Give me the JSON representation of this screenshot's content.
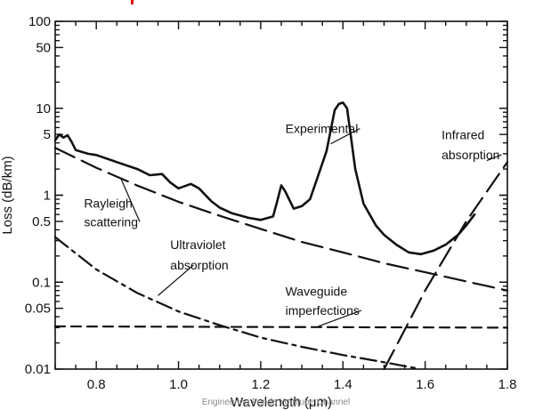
{
  "chart_data": {
    "type": "line",
    "title": "",
    "xlabel": "Wavelength (μm)",
    "ylabel": "Loss (dB/km)",
    "xlim": [
      0.7,
      1.8
    ],
    "ylim": [
      0.01,
      100
    ],
    "yscale": "log",
    "x_ticks": [
      0.8,
      1.0,
      1.2,
      1.4,
      1.6,
      1.8
    ],
    "x_tick_labels": [
      "0.8",
      "1.0",
      "1.2",
      "1.4",
      "1.6",
      "1.8"
    ],
    "y_ticks": [
      0.01,
      0.05,
      0.1,
      0.5,
      1,
      5,
      10,
      50,
      100
    ],
    "y_tick_labels": [
      "0.01",
      "0.05",
      "0.1",
      "0.5",
      "1",
      "5",
      "10",
      "50",
      "100"
    ],
    "grid": false,
    "series": [
      {
        "name": "Experimental",
        "style": "solid",
        "points": [
          [
            0.7,
            4.3
          ],
          [
            0.71,
            5.0
          ],
          [
            0.72,
            4.6
          ],
          [
            0.73,
            4.9
          ],
          [
            0.74,
            4.1
          ],
          [
            0.75,
            3.3
          ],
          [
            0.78,
            3.0
          ],
          [
            0.8,
            2.9
          ],
          [
            0.85,
            2.4
          ],
          [
            0.9,
            2.0
          ],
          [
            0.93,
            1.7
          ],
          [
            0.96,
            1.75
          ],
          [
            0.98,
            1.4
          ],
          [
            1.0,
            1.2
          ],
          [
            1.03,
            1.35
          ],
          [
            1.05,
            1.2
          ],
          [
            1.08,
            0.85
          ],
          [
            1.1,
            0.72
          ],
          [
            1.13,
            0.62
          ],
          [
            1.17,
            0.55
          ],
          [
            1.2,
            0.52
          ],
          [
            1.23,
            0.57
          ],
          [
            1.24,
            0.85
          ],
          [
            1.25,
            1.3
          ],
          [
            1.26,
            1.1
          ],
          [
            1.28,
            0.7
          ],
          [
            1.3,
            0.75
          ],
          [
            1.32,
            0.9
          ],
          [
            1.34,
            1.7
          ],
          [
            1.36,
            3.2
          ],
          [
            1.38,
            9.5
          ],
          [
            1.39,
            11.2
          ],
          [
            1.4,
            11.6
          ],
          [
            1.41,
            10
          ],
          [
            1.42,
            4.5
          ],
          [
            1.43,
            2.0
          ],
          [
            1.45,
            0.8
          ],
          [
            1.48,
            0.45
          ],
          [
            1.5,
            0.35
          ],
          [
            1.53,
            0.27
          ],
          [
            1.56,
            0.22
          ],
          [
            1.59,
            0.21
          ],
          [
            1.62,
            0.23
          ],
          [
            1.65,
            0.27
          ],
          [
            1.68,
            0.35
          ],
          [
            1.7,
            0.45
          ],
          [
            1.72,
            0.6
          ]
        ]
      },
      {
        "name": "Rayleigh scattering",
        "style": "long-dash",
        "points": [
          [
            0.7,
            3.5
          ],
          [
            0.8,
            2.07
          ],
          [
            0.9,
            1.29
          ],
          [
            1.0,
            0.84
          ],
          [
            1.1,
            0.58
          ],
          [
            1.2,
            0.41
          ],
          [
            1.3,
            0.29
          ],
          [
            1.4,
            0.22
          ],
          [
            1.5,
            0.165
          ],
          [
            1.6,
            0.13
          ],
          [
            1.7,
            0.102
          ],
          [
            1.8,
            0.08
          ]
        ]
      },
      {
        "name": "Ultraviolet absorption",
        "style": "dash-dot",
        "points": [
          [
            0.7,
            0.33
          ],
          [
            0.8,
            0.14
          ],
          [
            0.9,
            0.075
          ],
          [
            1.0,
            0.046
          ],
          [
            1.1,
            0.032
          ],
          [
            1.2,
            0.023
          ],
          [
            1.3,
            0.018
          ],
          [
            1.4,
            0.0145
          ],
          [
            1.5,
            0.012
          ],
          [
            1.58,
            0.0102
          ]
        ]
      },
      {
        "name": "Waveguide imperfections",
        "style": "short-dash",
        "points": [
          [
            0.7,
            0.031
          ],
          [
            1.8,
            0.03
          ]
        ]
      },
      {
        "name": "Infrared absorption",
        "style": "long-dash",
        "points": [
          [
            1.5,
            0.01
          ],
          [
            1.55,
            0.028
          ],
          [
            1.6,
            0.08
          ],
          [
            1.65,
            0.2
          ],
          [
            1.7,
            0.5
          ],
          [
            1.75,
            1.1
          ],
          [
            1.8,
            2.4
          ]
        ]
      }
    ],
    "annotations": [
      {
        "text": "Experimental",
        "x": 1.26,
        "y": 5.2,
        "target": [
          1.37,
          3.9
        ]
      },
      {
        "text": "Infrared",
        "x": 1.64,
        "y": 4.4
      },
      {
        "text": "absorption",
        "x": 1.64,
        "y": 2.6,
        "target": [
          1.75,
          2.5
        ]
      },
      {
        "text": "Rayleigh",
        "x": 0.77,
        "y": 0.72
      },
      {
        "text": "scattering",
        "x": 0.77,
        "y": 0.44,
        "target": [
          0.86,
          1.55
        ]
      },
      {
        "text": "Ultraviolet",
        "x": 0.98,
        "y": 0.24
      },
      {
        "text": "absorption",
        "x": 0.98,
        "y": 0.14,
        "target": [
          0.95,
          0.07
        ]
      },
      {
        "text": "Waveguide",
        "x": 1.26,
        "y": 0.07
      },
      {
        "text": "imperfections",
        "x": 1.26,
        "y": 0.042,
        "target": [
          1.34,
          0.031
        ]
      }
    ]
  },
  "watermark": "Engineering Funda YouTube Channel"
}
